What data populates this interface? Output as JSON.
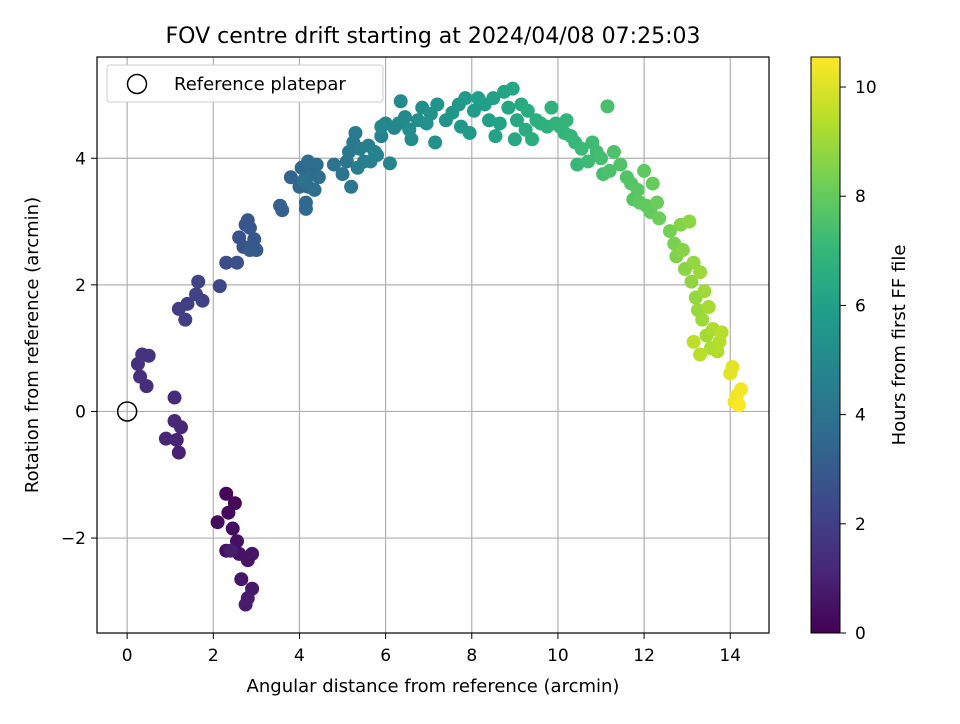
{
  "chart_data": {
    "type": "scatter",
    "title": "FOV centre drift starting at 2024/04/08 07:25:03",
    "xlabel": "Angular distance from reference (arcmin)",
    "ylabel": "Rotation from reference (arcmin)",
    "xlim": [
      -0.7,
      14.9
    ],
    "ylim": [
      -3.5,
      5.6
    ],
    "xticks": [
      0,
      2,
      4,
      6,
      8,
      10,
      12,
      14
    ],
    "yticks": [
      -2,
      0,
      2,
      4
    ],
    "ytick_labels": [
      "−2",
      "0",
      "2",
      "4"
    ],
    "grid": true,
    "legend": {
      "placement": "top-left",
      "label": "Reference platepar",
      "marker": "open-circle"
    },
    "reference_point": {
      "x": 0,
      "y": 0
    },
    "colorbar": {
      "label": "Hours from first FF file",
      "range": [
        0,
        10.55
      ],
      "ticks": [
        0,
        2,
        4,
        6,
        8,
        10
      ],
      "colormap": "viridis"
    },
    "colormap_stops": [
      "#440154",
      "#482878",
      "#3e4989",
      "#31688e",
      "#26828e",
      "#1f9e89",
      "#35b779",
      "#6ece58",
      "#b5de2b",
      "#fde725"
    ],
    "series": [
      {
        "points": [
          [
            2.3,
            -1.3,
            0.15
          ],
          [
            2.35,
            -1.6,
            0.2
          ],
          [
            2.5,
            -1.45,
            0.25
          ],
          [
            2.1,
            -1.75,
            0.3
          ],
          [
            2.45,
            -1.85,
            0.35
          ],
          [
            2.3,
            -2.2,
            0.4
          ],
          [
            2.55,
            -2.05,
            0.45
          ],
          [
            2.6,
            -2.25,
            0.5
          ],
          [
            2.8,
            -2.35,
            0.55
          ],
          [
            2.9,
            -2.25,
            0.6
          ],
          [
            2.65,
            -2.65,
            0.65
          ],
          [
            2.9,
            -2.8,
            0.7
          ],
          [
            2.8,
            -2.95,
            0.75
          ],
          [
            2.75,
            -3.05,
            0.8
          ],
          [
            2.4,
            -2.2,
            0.85
          ],
          [
            1.2,
            -0.65,
            1.0
          ],
          [
            1.15,
            -0.45,
            1.05
          ],
          [
            0.9,
            -0.43,
            1.1
          ],
          [
            1.25,
            -0.25,
            1.15
          ],
          [
            1.1,
            -0.15,
            1.2
          ],
          [
            1.1,
            0.22,
            1.3
          ],
          [
            0.45,
            0.4,
            1.4
          ],
          [
            0.3,
            0.55,
            1.45
          ],
          [
            0.25,
            0.75,
            1.5
          ],
          [
            0.35,
            0.9,
            1.55
          ],
          [
            0.5,
            0.88,
            1.6
          ],
          [
            1.2,
            1.62,
            1.9
          ],
          [
            1.35,
            1.45,
            1.95
          ],
          [
            1.4,
            1.7,
            2.0
          ],
          [
            1.6,
            1.85,
            2.05
          ],
          [
            1.75,
            1.75,
            2.1
          ],
          [
            1.65,
            2.05,
            2.15
          ],
          [
            2.15,
            1.98,
            2.3
          ],
          [
            2.3,
            2.35,
            2.5
          ],
          [
            2.55,
            2.35,
            2.6
          ],
          [
            2.6,
            2.75,
            2.7
          ],
          [
            2.7,
            2.6,
            2.75
          ],
          [
            2.75,
            2.95,
            2.8
          ],
          [
            2.8,
            3.02,
            2.82
          ],
          [
            2.85,
            2.9,
            2.85
          ],
          [
            2.95,
            2.72,
            2.9
          ],
          [
            3.0,
            2.55,
            2.95
          ],
          [
            2.85,
            2.55,
            2.97
          ],
          [
            3.55,
            3.25,
            3.2
          ],
          [
            3.6,
            3.18,
            3.25
          ],
          [
            3.8,
            3.7,
            3.35
          ],
          [
            4.0,
            3.55,
            3.45
          ],
          [
            4.05,
            3.85,
            3.5
          ],
          [
            4.15,
            3.3,
            3.55
          ],
          [
            4.15,
            3.2,
            3.6
          ],
          [
            4.2,
            3.55,
            3.65
          ],
          [
            4.3,
            3.75,
            3.7
          ],
          [
            4.4,
            3.9,
            3.75
          ],
          [
            4.2,
            3.95,
            3.8
          ],
          [
            4.45,
            3.7,
            3.82
          ],
          [
            4.35,
            3.5,
            3.85
          ],
          [
            4.1,
            3.65,
            3.9
          ],
          [
            4.8,
            3.9,
            4.05
          ],
          [
            5.0,
            3.75,
            4.1
          ],
          [
            5.1,
            3.95,
            4.15
          ],
          [
            5.2,
            3.55,
            4.2
          ],
          [
            5.15,
            4.1,
            4.25
          ],
          [
            5.25,
            4.25,
            4.3
          ],
          [
            5.3,
            4.4,
            4.35
          ],
          [
            5.4,
            4.15,
            4.4
          ],
          [
            5.5,
            3.95,
            4.45
          ],
          [
            5.35,
            3.85,
            4.5
          ],
          [
            5.6,
            4.2,
            4.55
          ],
          [
            5.65,
            3.95,
            4.6
          ],
          [
            5.75,
            4.1,
            4.65
          ],
          [
            5.8,
            4.05,
            4.7
          ],
          [
            5.9,
            4.35,
            4.75
          ],
          [
            6.0,
            4.55,
            4.8
          ],
          [
            6.1,
            3.92,
            4.82
          ],
          [
            5.9,
            4.5,
            4.85
          ],
          [
            6.2,
            4.48,
            4.9
          ],
          [
            6.3,
            4.55,
            4.95
          ],
          [
            6.35,
            4.9,
            5.0
          ],
          [
            6.45,
            4.65,
            5.05
          ],
          [
            6.55,
            4.45,
            5.1
          ],
          [
            6.6,
            4.3,
            5.15
          ],
          [
            6.75,
            4.6,
            5.2
          ],
          [
            6.85,
            4.8,
            5.25
          ],
          [
            6.95,
            4.55,
            5.3
          ],
          [
            7.05,
            4.7,
            5.35
          ],
          [
            7.15,
            4.25,
            5.4
          ],
          [
            7.2,
            4.85,
            5.45
          ],
          [
            7.4,
            4.6,
            5.5
          ],
          [
            7.55,
            4.72,
            5.55
          ],
          [
            7.7,
            4.85,
            5.6
          ],
          [
            7.75,
            4.5,
            5.65
          ],
          [
            7.85,
            4.95,
            5.7
          ],
          [
            7.95,
            4.4,
            5.75
          ],
          [
            8.05,
            4.75,
            5.8
          ],
          [
            8.15,
            4.95,
            5.85
          ],
          [
            8.3,
            4.85,
            5.9
          ],
          [
            8.4,
            4.6,
            5.95
          ],
          [
            8.5,
            4.95,
            6.0
          ],
          [
            8.55,
            4.35,
            6.05
          ],
          [
            8.65,
            4.55,
            6.1
          ],
          [
            8.75,
            5.05,
            6.15
          ],
          [
            8.85,
            4.8,
            6.2
          ],
          [
            8.95,
            5.1,
            6.25
          ],
          [
            9.0,
            4.3,
            6.3
          ],
          [
            9.05,
            4.6,
            6.35
          ],
          [
            9.15,
            4.85,
            6.4
          ],
          [
            9.25,
            4.45,
            6.45
          ],
          [
            9.3,
            4.75,
            6.5
          ],
          [
            9.4,
            4.3,
            6.55
          ],
          [
            9.5,
            4.6,
            6.6
          ],
          [
            9.6,
            4.55,
            6.65
          ],
          [
            9.75,
            4.5,
            6.7
          ],
          [
            9.85,
            4.8,
            6.75
          ],
          [
            9.95,
            4.55,
            6.8
          ],
          [
            10.05,
            4.5,
            6.85
          ],
          [
            10.15,
            4.4,
            6.9
          ],
          [
            10.2,
            4.6,
            6.95
          ],
          [
            10.3,
            4.35,
            7.0
          ],
          [
            10.4,
            4.25,
            7.05
          ],
          [
            10.45,
            3.9,
            7.1
          ],
          [
            10.55,
            4.15,
            7.15
          ],
          [
            10.7,
            3.95,
            7.2
          ],
          [
            10.8,
            4.25,
            7.25
          ],
          [
            10.9,
            4.1,
            7.3
          ],
          [
            11.0,
            4.0,
            7.35
          ],
          [
            11.05,
            3.75,
            7.4
          ],
          [
            11.15,
            4.82,
            7.45
          ],
          [
            11.2,
            3.8,
            7.5
          ],
          [
            11.3,
            4.1,
            7.55
          ],
          [
            11.45,
            3.9,
            7.6
          ],
          [
            11.6,
            3.7,
            7.65
          ],
          [
            11.7,
            3.6,
            7.7
          ],
          [
            11.75,
            3.35,
            7.75
          ],
          [
            11.85,
            3.5,
            7.8
          ],
          [
            11.9,
            3.3,
            7.85
          ],
          [
            12.0,
            3.8,
            7.9
          ],
          [
            12.05,
            3.25,
            7.95
          ],
          [
            12.15,
            3.15,
            8.0
          ],
          [
            12.2,
            3.6,
            8.05
          ],
          [
            12.3,
            3.3,
            8.1
          ],
          [
            12.35,
            3.05,
            8.15
          ],
          [
            12.6,
            2.85,
            8.3
          ],
          [
            12.7,
            2.65,
            8.4
          ],
          [
            12.75,
            2.45,
            8.5
          ],
          [
            12.85,
            2.95,
            8.55
          ],
          [
            12.9,
            2.55,
            8.6
          ],
          [
            12.95,
            2.25,
            8.65
          ],
          [
            13.05,
            3.0,
            8.7
          ],
          [
            13.1,
            2.05,
            8.75
          ],
          [
            13.15,
            2.35,
            8.8
          ],
          [
            13.2,
            1.8,
            8.85
          ],
          [
            13.25,
            1.6,
            8.9
          ],
          [
            13.3,
            2.2,
            8.95
          ],
          [
            13.35,
            1.45,
            9.0
          ],
          [
            13.4,
            1.9,
            9.05
          ],
          [
            13.45,
            1.2,
            9.1
          ],
          [
            13.5,
            1.65,
            9.15
          ],
          [
            13.55,
            1.0,
            9.2
          ],
          [
            13.6,
            1.3,
            9.25
          ],
          [
            13.7,
            0.95,
            9.3
          ],
          [
            13.75,
            1.1,
            9.35
          ],
          [
            13.8,
            1.25,
            9.4
          ],
          [
            13.3,
            0.9,
            9.45
          ],
          [
            13.15,
            1.1,
            9.5
          ],
          [
            14.0,
            0.6,
            10.1
          ],
          [
            14.05,
            0.7,
            10.15
          ],
          [
            14.1,
            0.15,
            10.3
          ],
          [
            14.15,
            0.25,
            10.35
          ],
          [
            14.25,
            0.35,
            10.4
          ],
          [
            14.2,
            0.1,
            10.5
          ]
        ]
      }
    ]
  }
}
